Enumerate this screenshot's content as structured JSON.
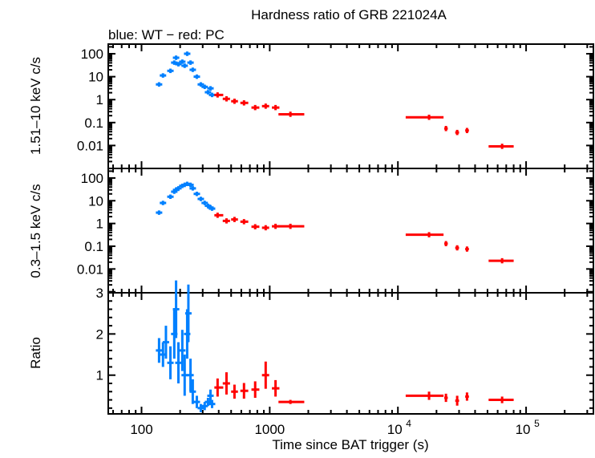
{
  "chart_data": {
    "type": "scatter",
    "title": "Hardness ratio of GRB 221024A",
    "subtitle": "blue: WT − red: PC",
    "xlabel": "Time since BAT trigger (s)",
    "x_scale": "log",
    "xlim": [
      55,
      335000
    ],
    "x_ticks": [
      {
        "v": 100,
        "label": "100"
      },
      {
        "v": 1000,
        "label": "1000"
      },
      {
        "v": 10000,
        "label": "10",
        "sup": "4"
      },
      {
        "v": 100000,
        "label": "10",
        "sup": "5"
      }
    ],
    "colors": {
      "WT": "#0080ff",
      "PC": "#ff0000"
    },
    "panels": [
      {
        "ylabel": "1.51–10 keV c/s",
        "y_scale": "log",
        "ylim": [
          0.001,
          263
        ],
        "y_ticks": [
          {
            "v": 100,
            "label": "100"
          },
          {
            "v": 10,
            "label": "10"
          },
          {
            "v": 1,
            "label": "1"
          },
          {
            "v": 0.1,
            "label": "0.1"
          },
          {
            "v": 0.01,
            "label": "0.01"
          }
        ],
        "WT": {
          "t": [
            137,
            147,
            168,
            180,
            186,
            194,
            208,
            217,
            227,
            241,
            251,
            270,
            290,
            311,
            330,
            345,
            355
          ],
          "y": [
            4.6,
            11.3,
            18,
            41,
            67,
            35,
            45,
            30,
            100,
            41,
            20,
            10,
            4.6,
            3.6,
            2.1,
            3.1,
            1.6
          ]
        },
        "PC": {
          "t": [
            392,
            460,
            531,
            630,
            770,
            930,
            1110,
            1450,
            17500,
            23700,
            29000,
            34600,
            65000
          ],
          "tlo": [
            370,
            430,
            500,
            590,
            720,
            870,
            1040,
            1170,
            11500,
            23000,
            28000,
            33500,
            51000
          ],
          "thi": [
            434,
            490,
            565,
            680,
            830,
            990,
            1190,
            1860,
            22700,
            24500,
            30000,
            35800,
            80000
          ],
          "y": [
            1.6,
            1.08,
            0.85,
            0.72,
            0.45,
            0.52,
            0.45,
            0.23,
            0.17,
            0.055,
            0.037,
            0.045,
            0.0092
          ]
        }
      },
      {
        "ylabel": "0.3–1.5 keV c/s",
        "y_scale": "log",
        "ylim": [
          0.0009,
          263
        ],
        "y_ticks": [
          {
            "v": 100,
            "label": "100"
          },
          {
            "v": 10,
            "label": "10"
          },
          {
            "v": 1,
            "label": "1"
          },
          {
            "v": 0.1,
            "label": "0.1"
          },
          {
            "v": 0.01,
            "label": "0.01"
          }
        ],
        "WT": {
          "t": [
            137,
            147,
            168,
            180,
            186,
            194,
            208,
            217,
            227,
            241,
            251,
            270,
            290,
            311,
            330,
            345,
            355
          ],
          "y": [
            3,
            8,
            15,
            25,
            30,
            35,
            45,
            50,
            55,
            50,
            35,
            20,
            12,
            8,
            6,
            5,
            4.5
          ]
        },
        "PC": {
          "t": [
            392,
            460,
            531,
            630,
            770,
            930,
            1110,
            1450,
            17500,
            23700,
            29000,
            34600,
            65000
          ],
          "tlo": [
            370,
            430,
            500,
            590,
            720,
            870,
            1040,
            1170,
            11500,
            23000,
            28000,
            33500,
            51000
          ],
          "thi": [
            434,
            490,
            565,
            680,
            830,
            990,
            1190,
            1860,
            22700,
            24500,
            30000,
            35800,
            80000
          ],
          "y": [
            2.3,
            1.3,
            1.5,
            1.2,
            0.72,
            0.65,
            0.75,
            0.75,
            0.32,
            0.13,
            0.085,
            0.075,
            0.023
          ]
        }
      },
      {
        "ylabel": "Ratio",
        "y_scale": "linear",
        "ylim": [
          0.06,
          3
        ],
        "y_ticks": [
          {
            "v": 3,
            "label": "3"
          },
          {
            "v": 2,
            "label": "2"
          },
          {
            "v": 1,
            "label": "1"
          }
        ],
        "WT": {
          "t": [
            137,
            147,
            155,
            168,
            180,
            186,
            194,
            208,
            217,
            227,
            232,
            241,
            251,
            270,
            290,
            311,
            330,
            345,
            355
          ],
          "y": [
            1.6,
            1.5,
            1.8,
            1.3,
            2.0,
            2.6,
            1.3,
            1.6,
            1.0,
            2.0,
            2.5,
            1.0,
            0.6,
            0.35,
            0.2,
            0.25,
            0.35,
            0.5,
            0.3
          ],
          "err": [
            0.3,
            0.3,
            0.4,
            0.4,
            0.6,
            0.7,
            0.5,
            0.5,
            0.5,
            0.6,
            0.7,
            0.4,
            0.3,
            0.15,
            0.1,
            0.1,
            0.1,
            0.15,
            0.1
          ]
        },
        "PC": {
          "t": [
            392,
            460,
            531,
            630,
            770,
            930,
            1110,
            1450,
            17500,
            23700,
            29000,
            34600,
            65000
          ],
          "tlo": [
            370,
            430,
            500,
            590,
            720,
            870,
            1040,
            1170,
            11500,
            23000,
            28000,
            33500,
            51000
          ],
          "thi": [
            434,
            490,
            565,
            680,
            830,
            990,
            1190,
            1860,
            22700,
            24500,
            30000,
            35800,
            80000
          ],
          "y": [
            0.7,
            0.8,
            0.6,
            0.62,
            0.65,
            1.0,
            0.68,
            0.35,
            0.5,
            0.45,
            0.38,
            0.48,
            0.4
          ],
          "err": [
            0.22,
            0.27,
            0.17,
            0.19,
            0.2,
            0.33,
            0.2,
            0.05,
            0.1,
            0.1,
            0.12,
            0.1,
            0.08
          ]
        }
      }
    ]
  }
}
